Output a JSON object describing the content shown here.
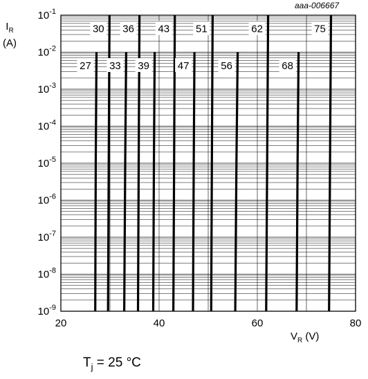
{
  "doc_id": "aaa-006667",
  "note": {
    "symbol": "T",
    "sub": "j",
    "text": " = 25 °C"
  },
  "chart_data": {
    "type": "line",
    "title": "",
    "xlabel": {
      "symbol": "V",
      "sub": "R",
      "unit": " (V)"
    },
    "ylabel": {
      "symbol": "I",
      "sub": "R",
      "unit": "(A)"
    },
    "xlim": [
      20,
      80
    ],
    "ylim": [
      1e-09,
      0.1
    ],
    "yscale": "log",
    "x_ticks": [
      "20",
      "40",
      "60",
      "80"
    ],
    "y_ticks": [
      {
        "base": "10",
        "exp": "-9"
      },
      {
        "base": "10",
        "exp": "-8"
      },
      {
        "base": "10",
        "exp": "-7"
      },
      {
        "base": "10",
        "exp": "-6"
      },
      {
        "base": "10",
        "exp": "-5"
      },
      {
        "base": "10",
        "exp": "-4"
      },
      {
        "base": "10",
        "exp": "-3"
      },
      {
        "base": "10",
        "exp": "-2"
      },
      {
        "base": "10",
        "exp": "-1"
      }
    ],
    "grid": true,
    "series": [
      {
        "name": "27",
        "x": [
          27.0,
          27.1,
          27.25
        ],
        "y": [
          1e-09,
          1e-05,
          0.01
        ]
      },
      {
        "name": "30",
        "x": [
          29.6,
          29.75,
          29.9
        ],
        "y": [
          1e-09,
          1e-05,
          0.1
        ]
      },
      {
        "name": "33",
        "x": [
          32.9,
          33.1,
          33.3
        ],
        "y": [
          1e-09,
          1e-05,
          0.01
        ]
      },
      {
        "name": "36",
        "x": [
          35.7,
          35.85,
          36.0
        ],
        "y": [
          1e-09,
          1e-05,
          0.1
        ]
      },
      {
        "name": "39",
        "x": [
          38.8,
          38.95,
          39.1
        ],
        "y": [
          1e-09,
          1e-05,
          0.01
        ]
      },
      {
        "name": "43",
        "x": [
          42.9,
          43.05,
          43.2
        ],
        "y": [
          1e-09,
          1e-05,
          0.1
        ]
      },
      {
        "name": "47",
        "x": [
          46.9,
          47.05,
          47.2
        ],
        "y": [
          1e-09,
          1e-05,
          0.01
        ]
      },
      {
        "name": "51",
        "x": [
          50.6,
          50.75,
          50.9
        ],
        "y": [
          1e-09,
          1e-05,
          0.1
        ]
      },
      {
        "name": "56",
        "x": [
          55.5,
          55.75,
          56.0
        ],
        "y": [
          1e-09,
          1e-05,
          0.01
        ]
      },
      {
        "name": "62",
        "x": [
          61.8,
          62.0,
          62.2
        ],
        "y": [
          1e-09,
          1e-05,
          0.1
        ]
      },
      {
        "name": "68",
        "x": [
          68.0,
          68.2,
          68.4
        ],
        "y": [
          1e-09,
          1e-05,
          0.01
        ]
      },
      {
        "name": "75",
        "x": [
          74.6,
          74.8,
          75.0
        ],
        "y": [
          1e-09,
          1e-05,
          0.1
        ]
      }
    ]
  }
}
